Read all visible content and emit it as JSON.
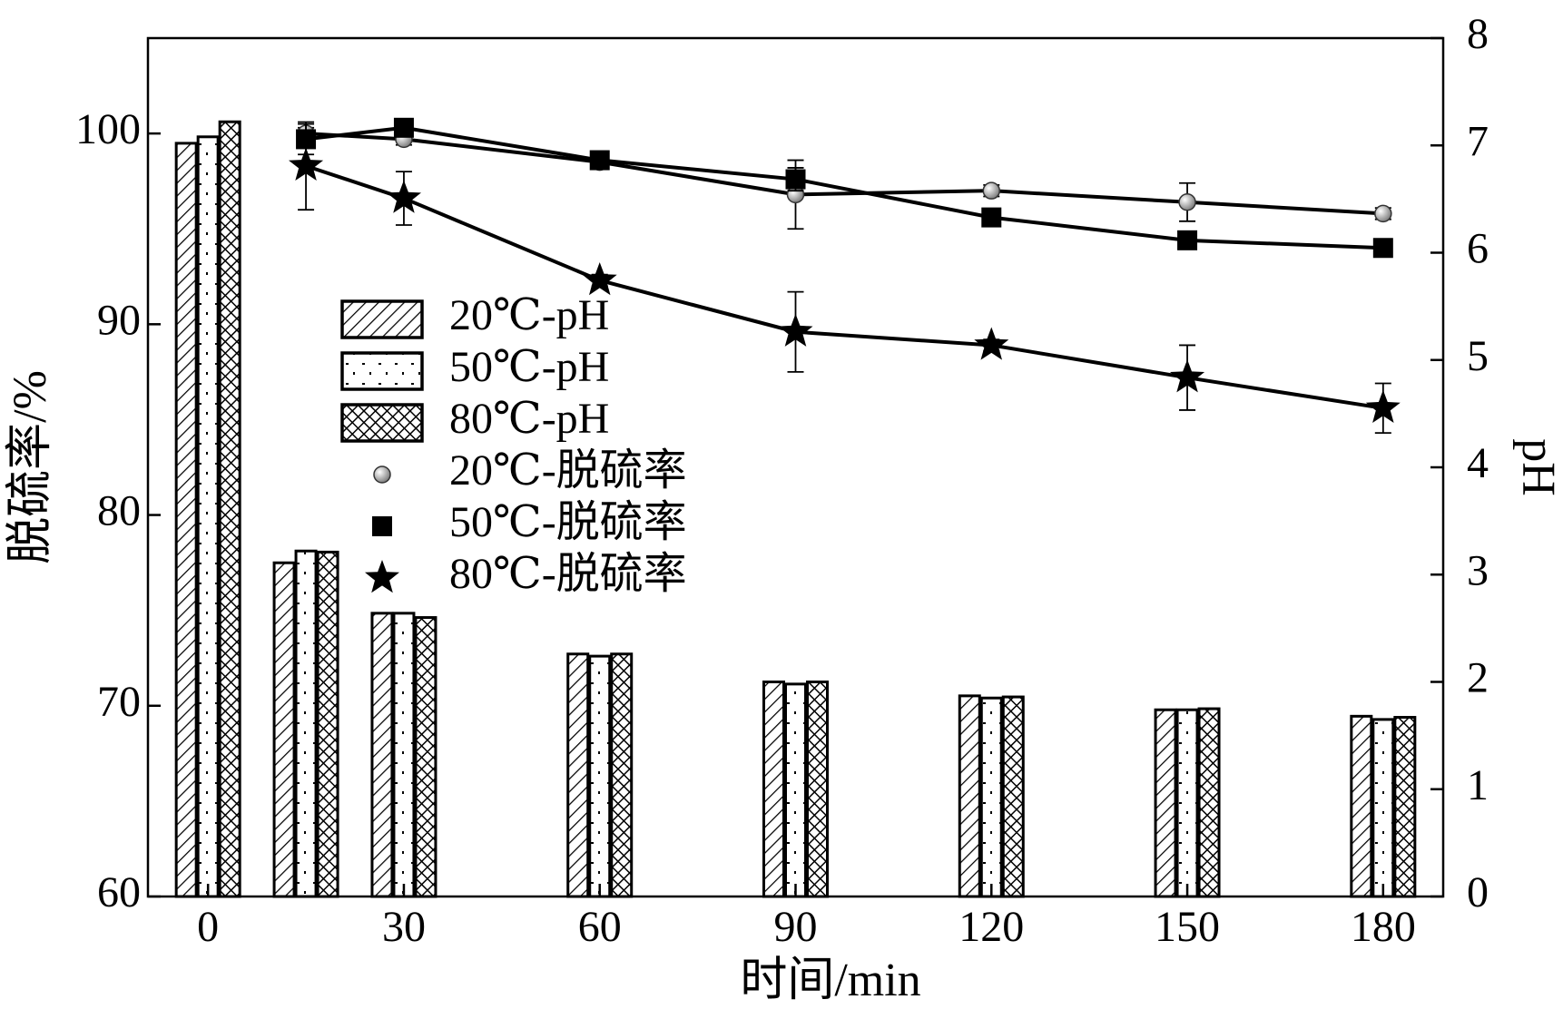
{
  "chart_data": {
    "type": "combo",
    "x_label": "时间/min",
    "y_label": "脱硫率/%",
    "y2_label": "pH",
    "x": [
      0,
      15,
      30,
      60,
      90,
      120,
      150,
      180
    ],
    "xlim": [
      -9.2,
      189.2
    ],
    "xticks": [
      0,
      30,
      60,
      90,
      120,
      150,
      180
    ],
    "ylim": [
      60,
      105
    ],
    "yticks": [
      60,
      70,
      80,
      90,
      100
    ],
    "y2lim": [
      0,
      8
    ],
    "y2ticks": [
      0,
      1,
      2,
      3,
      4,
      5,
      6,
      7,
      8
    ],
    "series": [
      {
        "name": "20℃-pH",
        "type": "bar",
        "axis": "y2",
        "pattern": "diagonal",
        "color": "#000000",
        "values": [
          7.02,
          3.11,
          2.64,
          2.26,
          2.0,
          1.87,
          1.74,
          1.68
        ]
      },
      {
        "name": "50℃-pH",
        "type": "bar",
        "axis": "y2",
        "pattern": "dots",
        "color": "#000000",
        "values": [
          7.08,
          3.22,
          2.64,
          2.24,
          1.98,
          1.85,
          1.74,
          1.65
        ]
      },
      {
        "name": "80℃-pH",
        "type": "bar",
        "axis": "y2",
        "pattern": "crosshatch",
        "color": "#000000",
        "values": [
          7.22,
          3.21,
          2.6,
          2.26,
          2.0,
          1.86,
          1.75,
          1.67
        ]
      },
      {
        "name": "20℃-脱硫率",
        "type": "line",
        "marker": "circle",
        "color": "#000000",
        "values": [
          null,
          100.0,
          99.7,
          98.5,
          96.8,
          97.0,
          96.4,
          95.8
        ],
        "errors": [
          null,
          0.3,
          0.3,
          0.2,
          1.8,
          0.3,
          1.0,
          0.3
        ]
      },
      {
        "name": "50℃-脱硫率",
        "type": "line",
        "marker": "square",
        "color": "#000000",
        "values": [
          null,
          99.7,
          100.3,
          98.6,
          97.6,
          95.6,
          94.4,
          94.0
        ],
        "errors": [
          null,
          0.8,
          0.3,
          0.2,
          0.6,
          0.3,
          0.3,
          0.3
        ]
      },
      {
        "name": "80℃-脱硫率",
        "type": "line",
        "marker": "star",
        "color": "#000000",
        "values": [
          null,
          98.3,
          96.6,
          92.3,
          89.6,
          88.9,
          87.2,
          85.6
        ],
        "errors": [
          null,
          2.3,
          1.4,
          0.3,
          2.1,
          0.3,
          1.7,
          1.3
        ]
      }
    ]
  }
}
